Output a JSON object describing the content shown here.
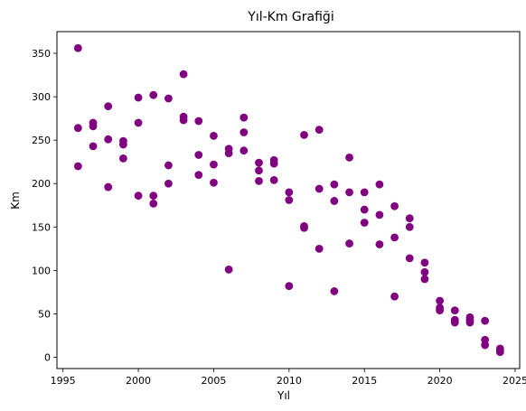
{
  "chart_data": {
    "type": "scatter",
    "title": "Yıl-Km Grafiği",
    "xlabel": "Yıl",
    "ylabel": "Km",
    "xlim": [
      1994.6,
      2025.3
    ],
    "ylim": [
      -13,
      375
    ],
    "xticks": [
      1995,
      2000,
      2005,
      2010,
      2015,
      2020,
      2025
    ],
    "yticks": [
      0,
      50,
      100,
      150,
      200,
      250,
      300,
      350
    ],
    "grid": false,
    "marker_color": "#800080",
    "series": [
      {
        "x": [
          1996,
          1996,
          1996,
          1997,
          1997,
          1997,
          1998,
          1998,
          1998,
          1999,
          1999,
          1999,
          2000,
          2000,
          2000,
          2001,
          2001,
          2001,
          2002,
          2002,
          2002,
          2003,
          2003,
          2003,
          2004,
          2004,
          2004,
          2005,
          2005,
          2005,
          2006,
          2006,
          2006,
          2007,
          2007,
          2007,
          2008,
          2008,
          2008,
          2009,
          2009,
          2009,
          2010,
          2010,
          2010,
          2011,
          2011,
          2011,
          2012,
          2012,
          2012,
          2013,
          2013,
          2013,
          2014,
          2014,
          2014,
          2015,
          2015,
          2015,
          2016,
          2016,
          2016,
          2017,
          2017,
          2017,
          2018,
          2018,
          2018,
          2019,
          2019,
          2019,
          2020,
          2020,
          2020,
          2021,
          2021,
          2021,
          2022,
          2022,
          2022,
          2023,
          2023,
          2023,
          2024,
          2024,
          2024
        ],
        "y": [
          356,
          264,
          220,
          270,
          266,
          243,
          289,
          251,
          196,
          249,
          245,
          229,
          299,
          270,
          186,
          302,
          186,
          177,
          298,
          221,
          200,
          326,
          277,
          273,
          272,
          233,
          210,
          255,
          222,
          201,
          240,
          235,
          101,
          276,
          259,
          238,
          224,
          215,
          203,
          227,
          223,
          204,
          190,
          181,
          82,
          256,
          151,
          149,
          262,
          194,
          125,
          199,
          180,
          76,
          230,
          190,
          131,
          190,
          170,
          155,
          199,
          164,
          130,
          174,
          138,
          70,
          160,
          150,
          114,
          109,
          98,
          90,
          65,
          57,
          54,
          54,
          43,
          40,
          46,
          43,
          40,
          42,
          20,
          14,
          10,
          8,
          6
        ]
      }
    ]
  }
}
